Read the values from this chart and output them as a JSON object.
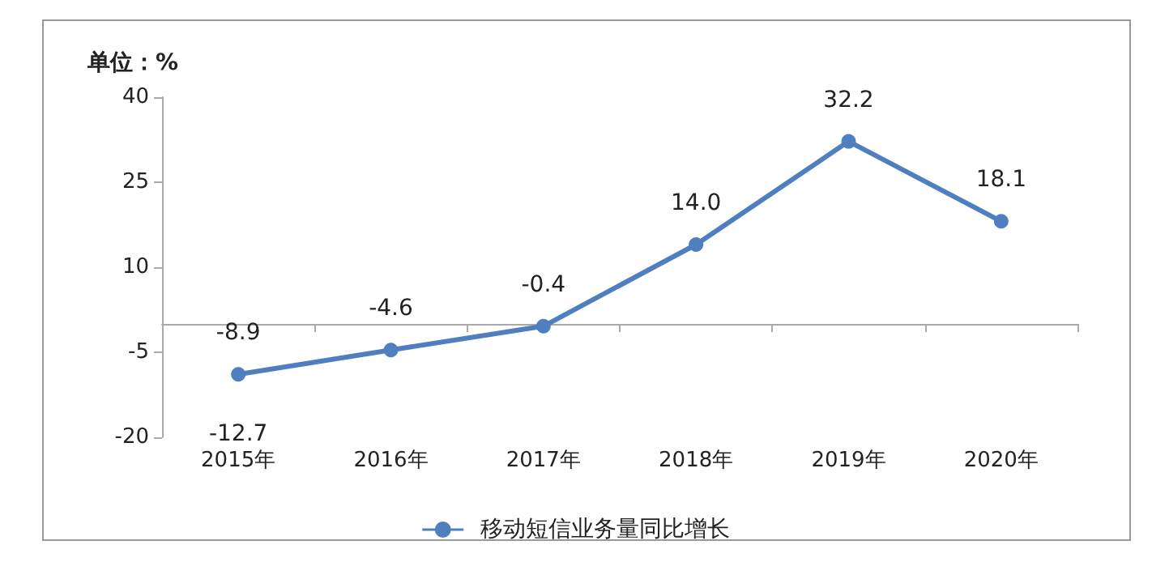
{
  "chart_data": {
    "type": "line",
    "ylabel": "单位：%",
    "categories": [
      "2015年",
      "2016年",
      "2017年",
      "2018年",
      "2019年",
      "2020年"
    ],
    "series": [
      {
        "name": "移动短信业务量同比增长",
        "color": "#4f7fbf",
        "values": [
          -8.9,
          -4.6,
          -0.4,
          14.0,
          32.2,
          18.1
        ],
        "value_labels": [
          "-8.9",
          "-4.6",
          "-0.4",
          "14.0",
          "32.2",
          "18.1"
        ]
      }
    ],
    "ylim": [
      -20,
      40
    ],
    "yticks": [
      -20,
      -5,
      10,
      25,
      40
    ],
    "grid": false,
    "legend": "bottom",
    "marker": "circle",
    "line_style": "solid",
    "annotations": [
      "-12.7"
    ]
  }
}
